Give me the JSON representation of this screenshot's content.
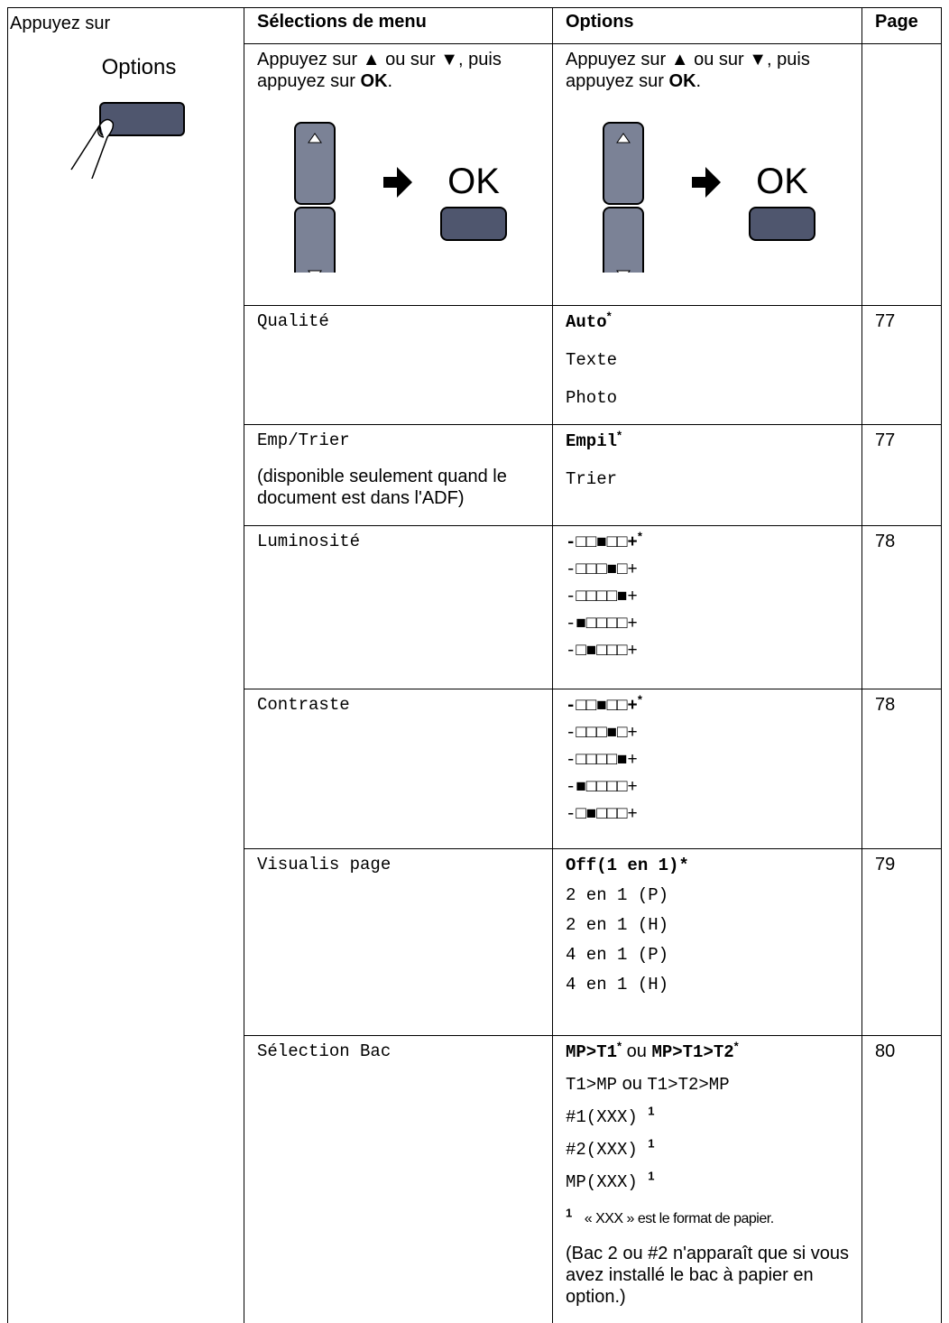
{
  "sidebar": {
    "label": "Appuyez sur",
    "button_label": "Options"
  },
  "table": {
    "header": [
      "Sélections de menu",
      "Options",
      "Page"
    ],
    "instructions": [
      {
        "text": "Appuyez sur ▲ ou sur ▼, puis appuyez sur ",
        "key": "OK",
        "end": ".",
        "button_label": "OK"
      },
      {
        "text": "Appuyez sur ▲ ou sur ▼, puis appuyez sur ",
        "key": "OK",
        "end": ".",
        "button_label": "OK"
      }
    ],
    "rows": [
      {
        "menu": "Qualité",
        "options": [
          [
            {
              "text": "Auto",
              "style": "mono-bold"
            },
            {
              "text": "*",
              "style": "sup"
            }
          ],
          [
            "Texte"
          ],
          [
            "Photo"
          ]
        ],
        "page": 77
      },
      {
        "menu": "Emp/Trier",
        "note": "(disponible seulement quand le document est dans l'ADF)",
        "options": [
          [
            {
              "text": "Empil",
              "style": "mono-bold"
            },
            {
              "text": "*",
              "style": "sup"
            }
          ],
          [
            "Trier"
          ]
        ],
        "page": 77
      },
      {
        "menu": "Luminosité",
        "options": [
          [
            {
              "text": "-□□■□□+",
              "style": "mono-bold"
            },
            {
              "text": "*",
              "style": "sup"
            }
          ],
          [
            "-□□□■□+"
          ],
          [
            "-□□□□■+"
          ],
          [
            "-■□□□□+"
          ],
          [
            "-□■□□□+"
          ]
        ],
        "page": 78
      },
      {
        "menu": "Contraste",
        "options": [
          [
            {
              "text": "-□□■□□+",
              "style": "mono-bold"
            },
            {
              "text": "*",
              "style": "sup"
            }
          ],
          [
            "-□□□■□+"
          ],
          [
            "-□□□□■+"
          ],
          [
            "-■□□□□+"
          ],
          [
            "-□■□□□+"
          ]
        ],
        "page": 78
      },
      {
        "menu": "Visualis page",
        "options": [
          [
            {
              "text": "Off(1 en 1)*",
              "style": "mono-bold"
            }
          ],
          [
            "2 en 1 (P)"
          ],
          [
            "2 en 1 (H)"
          ],
          [
            "4 en 1 (P)"
          ],
          [
            "4 en 1 (H)"
          ]
        ],
        "page": 79
      },
      {
        "menu": "Sélection Bac",
        "options": [
          [
            {
              "text": "MP>T1",
              "style": "mono-bold"
            },
            {
              "text": "*",
              "style": "sup"
            },
            {
              "text": " ou ",
              "style": "sans"
            },
            {
              "text": "MP>T1>T2",
              "style": "mono-bold"
            },
            {
              "text": "*",
              "style": "sup"
            }
          ],
          [
            "T1>MP",
            {
              "text": " ou ",
              "style": "sans"
            },
            "T1>T2>MP"
          ],
          [
            "#1(XXX) ",
            {
              "text": "1",
              "style": "sup"
            }
          ],
          [
            "#2(XXX) ",
            {
              "text": "1",
              "style": "sup"
            }
          ],
          [
            "MP(XXX) ",
            {
              "text": "1",
              "style": "sup"
            }
          ]
        ],
        "footnote": {
          "mark": "1",
          "text": "« XXX » est le format de papier."
        },
        "options_note": "(Bac 2 ou #2 n'apparaît que si vous avez installé le bac à papier en option.)",
        "page": 80
      }
    ]
  }
}
